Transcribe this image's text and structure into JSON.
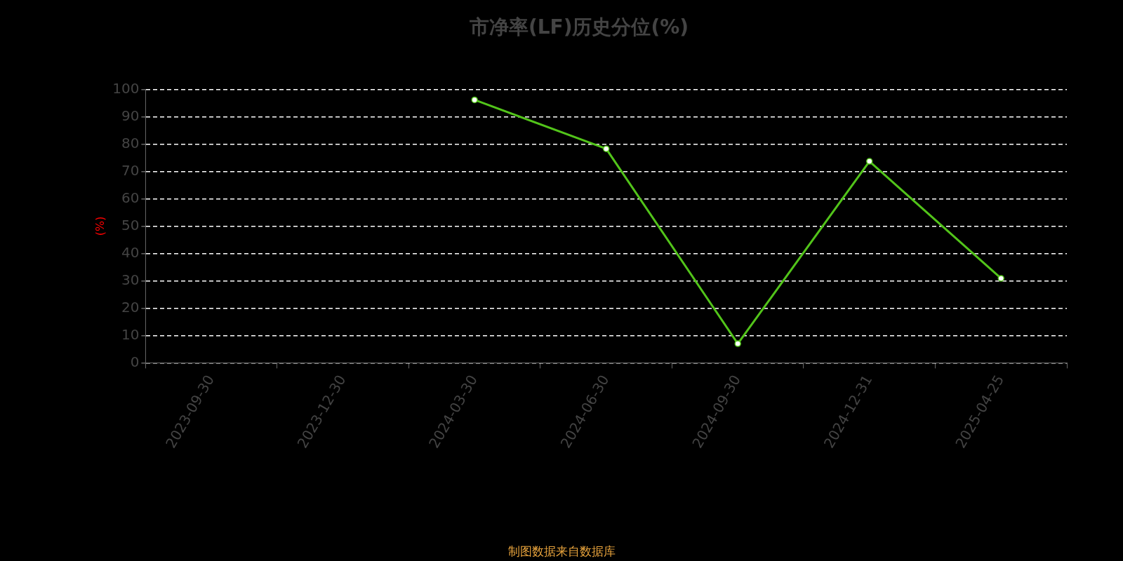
{
  "chart_data": {
    "type": "line",
    "title": "市净率(LF)历史分位(%)",
    "ylabel": "(%)",
    "categories": [
      "2023-09-30",
      "2023-12-30",
      "2024-03-30",
      "2024-06-30",
      "2024-09-30",
      "2024-12-31",
      "2025-04-25"
    ],
    "series": [
      {
        "color": "#52c41a",
        "values": [
          null,
          null,
          96.2,
          78.3,
          7.0,
          73.7,
          30.9
        ]
      }
    ],
    "ylim": [
      0,
      100
    ],
    "yticks": [
      0,
      10,
      20,
      30,
      40,
      50,
      60,
      70,
      80,
      90,
      100
    ],
    "grid": "y",
    "legend": false,
    "marker": "circle",
    "line_style": "solid",
    "annotations": [
      "制图数据来自数据库"
    ]
  }
}
